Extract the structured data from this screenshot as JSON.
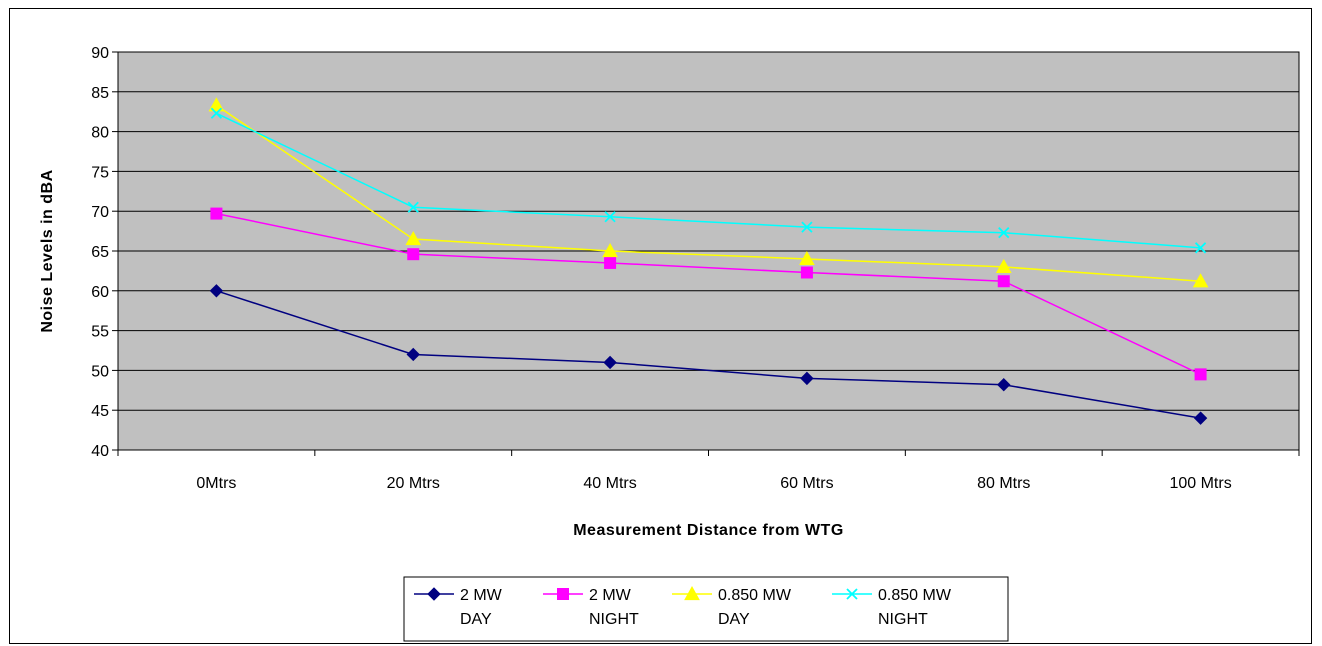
{
  "chart_data": {
    "type": "line",
    "title": "",
    "xlabel": "Measurement Distance from WTG",
    "ylabel": "Noise Levels in dBA",
    "categories": [
      "0Mtrs",
      "20 Mtrs",
      "40 Mtrs",
      "60 Mtrs",
      "80 Mtrs",
      "100 Mtrs"
    ],
    "ylim": [
      40,
      90
    ],
    "yticks": [
      40,
      45,
      50,
      55,
      60,
      65,
      70,
      75,
      80,
      85,
      90
    ],
    "grid": true,
    "legend_position": "bottom",
    "series": [
      {
        "name": "2 MW DAY",
        "name_lines": [
          "2 MW",
          "DAY"
        ],
        "color": "#000080",
        "marker": "diamond",
        "values": [
          60,
          52,
          51,
          49,
          48.2,
          44
        ]
      },
      {
        "name": "2 MW NIGHT",
        "name_lines": [
          "2 MW",
          "NIGHT"
        ],
        "color": "#ff00ff",
        "marker": "square",
        "values": [
          69.7,
          64.6,
          63.5,
          62.3,
          61.2,
          49.5
        ]
      },
      {
        "name": "0.850 MW DAY",
        "name_lines": [
          "0.850 MW",
          "DAY"
        ],
        "color": "#ffff00",
        "marker": "triangle",
        "values": [
          83.3,
          66.5,
          65,
          64,
          63,
          61.2
        ]
      },
      {
        "name": "0.850 MW NIGHT",
        "name_lines": [
          "0.850 MW",
          "NIGHT"
        ],
        "color": "#00ffff",
        "marker": "x",
        "values": [
          82.3,
          70.5,
          69.3,
          68,
          67.3,
          65.4
        ]
      }
    ]
  }
}
